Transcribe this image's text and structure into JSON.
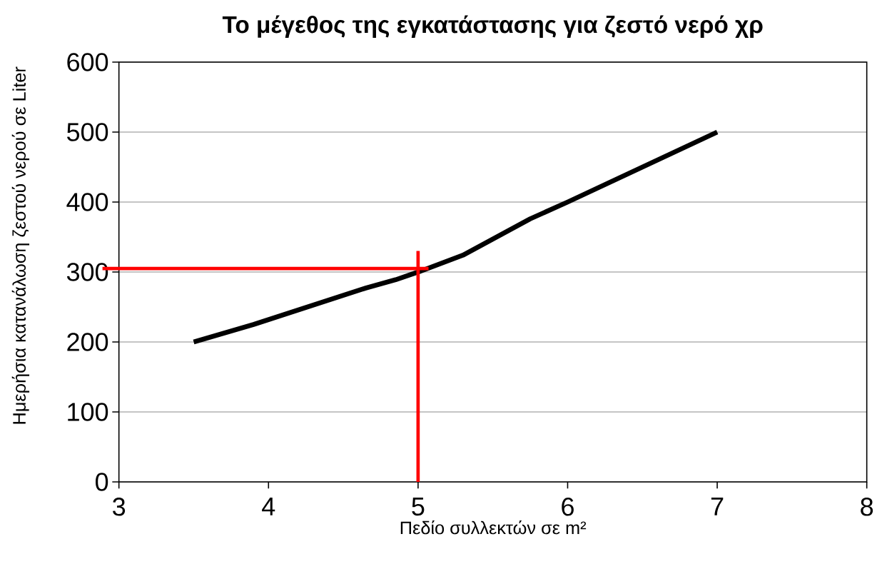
{
  "chart_data": {
    "type": "line",
    "title": "Το μέγεθος της εγκατάστασης για ζεστό νερό χρ",
    "xlabel": "Πεδίο συλλεκτών σε m²",
    "ylabel": "Ημερήσια κατανάλωση ζεστού νερού σε Liter",
    "series": [
      {
        "color": "#000000",
        "x": [
          3.5,
          3.9,
          4.65,
          4.85,
          5,
          5.3,
          5.75,
          6,
          7
        ],
        "values": [
          200,
          225,
          277,
          289,
          300,
          324,
          376,
          400,
          500
        ]
      }
    ],
    "xlim": [
      3,
      8
    ],
    "xticks": [
      3,
      4,
      5,
      6,
      7,
      8
    ],
    "ylim": [
      0,
      600
    ],
    "yticks": [
      0,
      100,
      200,
      300,
      400,
      500,
      600
    ],
    "grid": "y",
    "ref_lines": [
      {
        "axis": "y",
        "value": 305,
        "color": "#ff0000"
      },
      {
        "axis": "x",
        "value": 5,
        "color": "#ff0000"
      }
    ]
  }
}
